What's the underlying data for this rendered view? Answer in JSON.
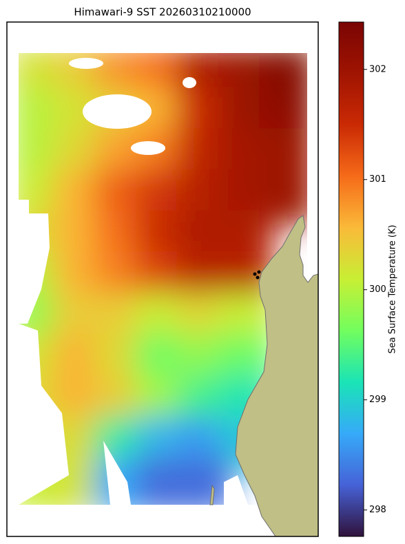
{
  "chart_data": {
    "type": "heatmap",
    "title": "Himawari-9 SST 20260310210000",
    "colorbar_label": "Sea Surface Temperature (K)",
    "clim": [
      297.76,
      302.43
    ],
    "cticks": [
      298,
      299,
      300,
      301,
      302
    ],
    "colormap": "turbo",
    "values": [
      [
        300.2,
        300.4,
        300.8,
        301.0,
        301.8,
        302.0,
        302.3
      ],
      [
        300.0,
        300.2,
        300.4,
        300.6,
        301.5,
        302.0,
        302.2
      ],
      [
        300.0,
        300.3,
        300.7,
        300.9,
        301.6,
        301.9,
        302.0
      ],
      [
        300.1,
        300.6,
        301.1,
        301.4,
        301.7,
        301.9,
        302.0
      ],
      [
        300.3,
        300.6,
        301.0,
        301.5,
        301.8,
        301.8,
        null
      ],
      [
        300.0,
        300.6,
        300.9,
        301.3,
        301.7,
        301.7,
        null
      ],
      [
        299.8,
        300.4,
        300.4,
        300.1,
        300.3,
        300.1,
        null
      ],
      [
        300.2,
        300.6,
        300.3,
        299.6,
        299.8,
        299.6,
        null
      ],
      [
        300.3,
        300.6,
        300.4,
        299.9,
        299.4,
        299.2,
        null
      ],
      [
        300.1,
        300.3,
        299.3,
        298.8,
        298.6,
        298.9,
        null
      ],
      [
        300.1,
        300.2,
        298.7,
        298.3,
        298.3,
        null,
        null
      ]
    ]
  }
}
